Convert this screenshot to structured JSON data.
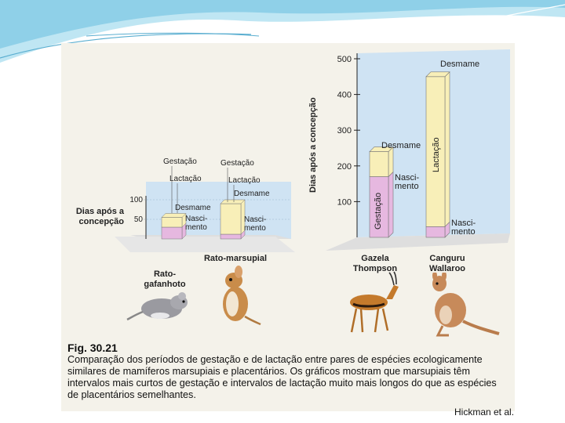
{
  "figure": {
    "number": "Fig. 30.21",
    "caption": "Comparação dos períodos de gestação e de lactação entre pares de espécies ecologicamente similares de mamíferos marsupiais e placentários. Os gráficos mostram que marsupiais têm intervalos mais curtos de gestação e intervalos de lactação muito mais longos do que as espécies de placentários semelhantes.",
    "credit": "Hickman et al."
  },
  "colors": {
    "gestation": "#e6b8e0",
    "lactation": "#f8efb8",
    "panel": "#cfe3f3",
    "floor": "#dedede",
    "banner": "#8fd0e8"
  },
  "chart_data": [
    {
      "type": "bar",
      "ylabel": "Dias após a concepção",
      "yticks": [
        50,
        100
      ],
      "ylim": [
        0,
        110
      ],
      "categories": [
        "Rato-gafanhoto",
        "Rato-marsupial"
      ],
      "series": [
        {
          "name": "Gestação",
          "values": [
            30,
            12
          ]
        },
        {
          "name": "Lactação",
          "values": [
            25,
            78
          ]
        }
      ],
      "annotations": [
        {
          "labels": [
            "Gestação",
            "Lactação",
            "Desmame",
            "Nasci-mento"
          ]
        },
        {
          "labels": [
            "Gestação",
            "Lactação",
            "Desmame",
            "Nasci-mento"
          ]
        }
      ]
    },
    {
      "type": "bar",
      "ylabel": "Dias após a concepção",
      "yticks": [
        100,
        200,
        300,
        400,
        500
      ],
      "ylim": [
        0,
        520
      ],
      "categories": [
        "Gazela Thompson",
        "Canguru Wallaroo"
      ],
      "series": [
        {
          "name": "Gestação",
          "values": [
            170,
            30
          ]
        },
        {
          "name": "Lactação",
          "values": [
            70,
            420
          ]
        }
      ],
      "annotations": [
        {
          "labels": [
            "Desmame",
            "Nasci-mento",
            "Gestação"
          ]
        },
        {
          "labels": [
            "Desmame",
            "Lactação",
            "Nasci-mento"
          ]
        }
      ]
    }
  ]
}
